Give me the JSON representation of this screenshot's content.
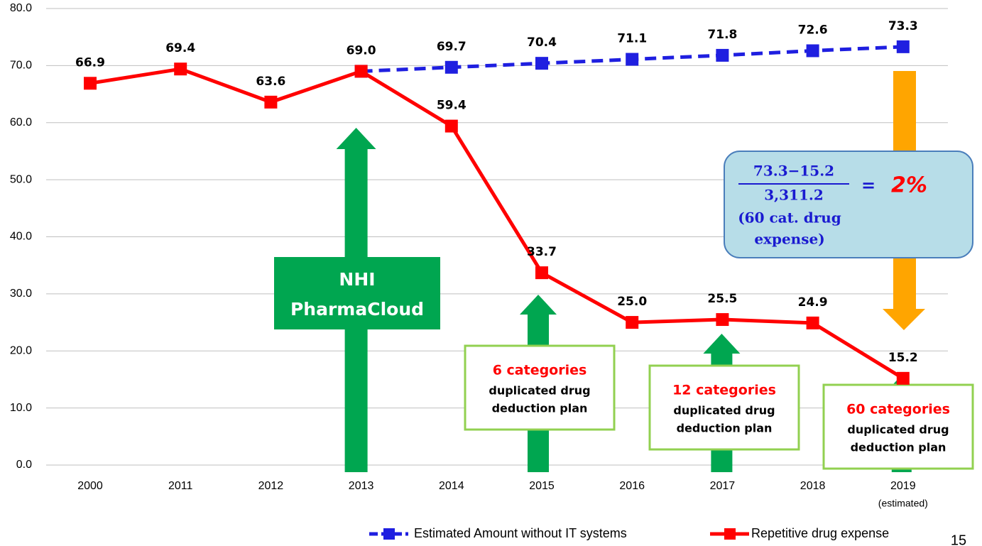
{
  "chart_data": {
    "type": "line",
    "categories": [
      "2000",
      "2011",
      "2012",
      "2013",
      "2014",
      "2015",
      "2016",
      "2017",
      "2018",
      "2019"
    ],
    "x_note": "(estimated)",
    "series": [
      {
        "name": "Estimated Amount without IT systems",
        "color": "#1f1fe0",
        "dashed": true,
        "values": [
          null,
          null,
          null,
          69.0,
          69.7,
          70.4,
          71.1,
          71.8,
          72.6,
          73.3
        ],
        "value_labels": [
          null,
          null,
          null,
          null,
          "69.7",
          "70.4",
          "71.1",
          "71.8",
          "72.6",
          "73.3"
        ]
      },
      {
        "name": "Repetitive drug expense",
        "color": "#ff0000",
        "dashed": false,
        "values": [
          66.9,
          69.4,
          63.6,
          69.0,
          59.4,
          33.7,
          25.0,
          25.5,
          24.9,
          15.2
        ],
        "value_labels": [
          "66.9",
          "69.4",
          "63.6",
          "69.0",
          "59.4",
          "33.7",
          "25.0",
          "25.5",
          "24.9",
          "15.2"
        ]
      }
    ],
    "ylim": [
      0,
      80
    ],
    "yticks": [
      {
        "value": 0,
        "label": "0.0"
      },
      {
        "value": 10,
        "label": "10.0"
      },
      {
        "value": 20,
        "label": "20.0"
      },
      {
        "value": 30,
        "label": "30.0"
      },
      {
        "value": 40,
        "label": "40.0"
      },
      {
        "value": 50,
        "label": "50.0"
      },
      {
        "value": 60,
        "label": "60.0"
      },
      {
        "value": 70,
        "label": "70.0"
      },
      {
        "value": 80,
        "label": "80.0"
      }
    ],
    "grid": true,
    "pharmacloud": [
      "NHI",
      "PharmaCloud"
    ],
    "plans": [
      {
        "title": "6 categories",
        "lines": [
          "duplicated drug",
          "deduction plan"
        ]
      },
      {
        "title": "12 categories",
        "lines": [
          "duplicated drug",
          "deduction plan"
        ]
      },
      {
        "title": "60 categories",
        "lines": [
          "duplicated drug",
          "deduction plan"
        ]
      }
    ],
    "formula": {
      "numerator": "73.3−15.2",
      "denominator": "3,311.2",
      "note": [
        "(60 cat. drug",
        "expense)"
      ],
      "equals": "=",
      "result": "2%"
    }
  },
  "page_number": "15"
}
